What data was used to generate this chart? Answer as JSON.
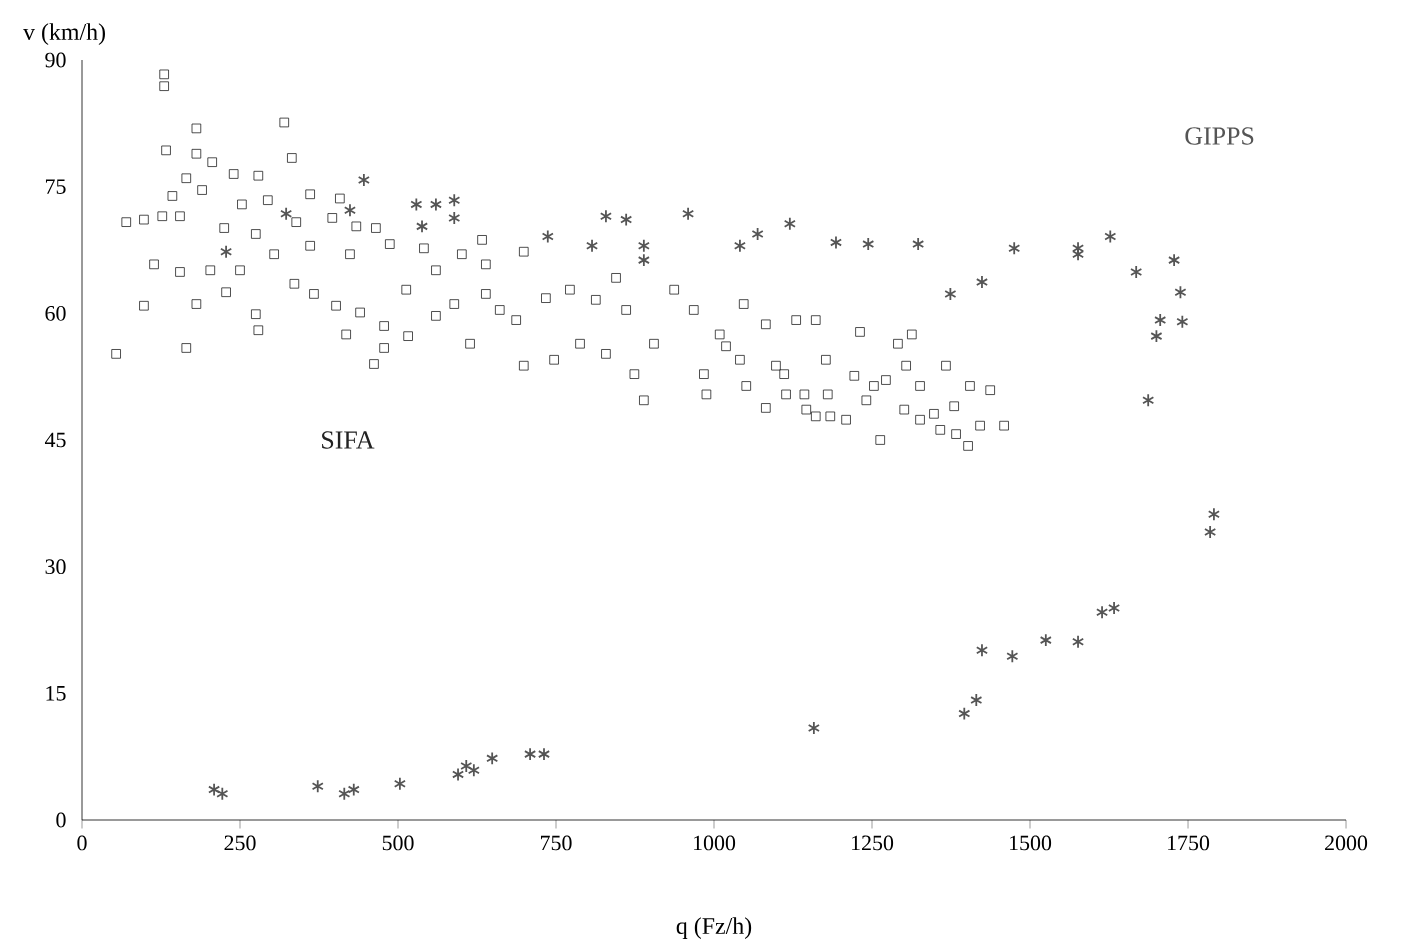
{
  "chart_data": {
    "type": "scatter",
    "xlabel": "q (Fz/h)",
    "ylabel": "v (km/h)",
    "xlim": [
      0,
      2000
    ],
    "ylim": [
      0,
      90
    ],
    "xticks": [
      0,
      250,
      500,
      750,
      1000,
      1250,
      1500,
      1750,
      2000
    ],
    "yticks": [
      0,
      15,
      30,
      45,
      60,
      75,
      90
    ],
    "grid": false,
    "legend": false,
    "series": [
      {
        "name": "SIFA",
        "color": "#222222",
        "marker": "square",
        "x": [
          130,
          130,
          181,
          320,
          332,
          133,
          181,
          206,
          240,
          279,
          165,
          143,
          190,
          253,
          294,
          361,
          408,
          70,
          98,
          127,
          155,
          225,
          275,
          339,
          396,
          434,
          465,
          114,
          155,
          203,
          250,
          304,
          361,
          424,
          487,
          541,
          601,
          633,
          98,
          181,
          228,
          275,
          279,
          336,
          367,
          402,
          440,
          418,
          478,
          516,
          478,
          462,
          560,
          614,
          513,
          560,
          639,
          54,
          165,
          699,
          699,
          747,
          788,
          829,
          845,
          874,
          889,
          734,
          772,
          813,
          861,
          905,
          937,
          968,
          984,
          988,
          1009,
          687,
          661,
          589,
          639,
          1047,
          1082,
          1130,
          1161,
          1231,
          1291,
          1313,
          1051,
          1082,
          1019,
          1041,
          1098,
          1143,
          1161,
          1180,
          1184,
          1209,
          1263,
          1253,
          1304,
          1367,
          1326,
          1405,
          1437,
          1301,
          1326,
          1358,
          1383,
          1402,
          1459,
          1421,
          1348,
          1380,
          1111,
          1222,
          1241,
          1177,
          1272,
          1114,
          1146
        ],
        "values": [
          88.3,
          86.9,
          81.9,
          82.6,
          78.4,
          79.3,
          78.9,
          77.9,
          76.5,
          76.3,
          76.0,
          73.9,
          74.6,
          72.9,
          73.4,
          74.1,
          73.6,
          70.8,
          71.1,
          71.5,
          71.5,
          70.1,
          69.4,
          70.8,
          71.3,
          70.3,
          70.1,
          65.8,
          64.9,
          65.1,
          65.1,
          67.0,
          68.0,
          67.0,
          68.2,
          67.7,
          67.0,
          68.7,
          60.9,
          61.1,
          62.5,
          59.9,
          58.0,
          63.5,
          62.3,
          60.9,
          60.1,
          57.5,
          58.5,
          57.3,
          55.9,
          54.0,
          59.7,
          56.4,
          62.8,
          65.1,
          65.8,
          55.2,
          55.9,
          53.8,
          67.3,
          54.5,
          56.4,
          55.2,
          64.2,
          52.8,
          49.7,
          61.8,
          62.8,
          61.6,
          60.4,
          56.4,
          62.8,
          60.4,
          52.8,
          50.4,
          57.5,
          59.2,
          60.4,
          61.1,
          62.3,
          61.1,
          58.7,
          59.2,
          59.2,
          57.8,
          56.4,
          57.5,
          51.4,
          48.8,
          56.1,
          54.5,
          53.8,
          50.4,
          47.8,
          50.4,
          47.8,
          47.4,
          45.0,
          51.4,
          53.8,
          53.8,
          51.4,
          51.4,
          50.9,
          48.6,
          47.4,
          46.2,
          45.7,
          44.3,
          46.7,
          46.7,
          48.1,
          49.0,
          52.8,
          52.6,
          49.7,
          54.5,
          52.1,
          50.4,
          48.6
        ]
      },
      {
        "name": "GIPPS",
        "color": "#555555",
        "marker": "cross",
        "x": [
          209,
          222,
          373,
          415,
          430,
          503,
          595,
          608,
          620,
          649,
          709,
          731,
          1158,
          1396,
          1415,
          1424,
          1472,
          1525,
          1576,
          1614,
          1633,
          1791,
          1785,
          446,
          529,
          560,
          589,
          538,
          589,
          424,
          228,
          323,
          829,
          861,
          737,
          807,
          889,
          889,
          959,
          1041,
          1069,
          1120,
          1193,
          1244,
          1323,
          1374,
          1424,
          1475,
          1576,
          1576,
          1627,
          1668,
          1728,
          1738,
          1741,
          1706,
          1700,
          1687
        ],
        "values": [
          3.6,
          3.1,
          4.0,
          3.1,
          3.6,
          4.3,
          5.4,
          6.4,
          5.9,
          7.3,
          7.8,
          7.8,
          10.9,
          12.6,
          14.2,
          20.1,
          19.4,
          21.3,
          21.1,
          24.6,
          25.1,
          36.2,
          34.1,
          75.8,
          72.9,
          72.9,
          73.4,
          70.3,
          71.3,
          72.2,
          67.3,
          71.8,
          71.5,
          71.1,
          69.1,
          68.0,
          68.0,
          66.3,
          71.8,
          68.0,
          69.4,
          70.6,
          68.4,
          68.2,
          68.2,
          62.3,
          63.7,
          67.7,
          67.7,
          67.0,
          69.1,
          64.9,
          66.3,
          62.5,
          59.0,
          59.2,
          57.3,
          49.7
        ]
      }
    ]
  }
}
